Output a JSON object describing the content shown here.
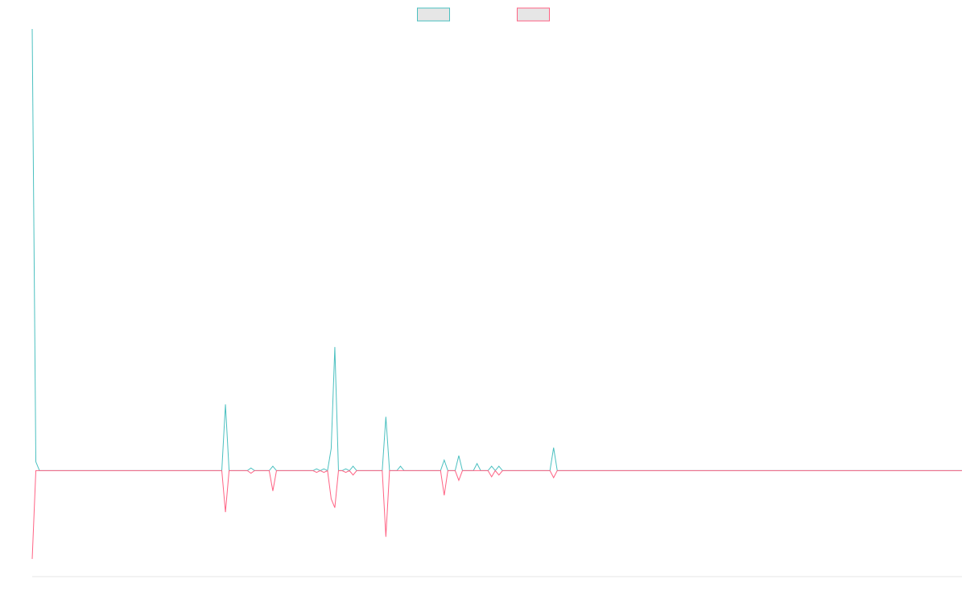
{
  "chart_data": {
    "type": "line",
    "x_count": 256,
    "ylim": [
      -120,
      500
    ],
    "legend_position": "top-center",
    "grid": false,
    "series": [
      {
        "color": "#4bc0c0",
        "nonzero": [
          [
            0,
            500
          ],
          [
            1,
            10
          ],
          [
            53,
            75
          ],
          [
            60,
            3
          ],
          [
            66,
            5
          ],
          [
            78,
            2
          ],
          [
            80,
            2
          ],
          [
            82,
            25
          ],
          [
            83,
            140
          ],
          [
            86,
            2
          ],
          [
            88,
            5
          ],
          [
            97,
            61
          ],
          [
            101,
            5
          ],
          [
            113,
            12
          ],
          [
            117,
            17
          ],
          [
            122,
            8
          ],
          [
            126,
            5
          ],
          [
            128,
            5
          ],
          [
            143,
            26
          ]
        ]
      },
      {
        "color": "#ff6384",
        "nonzero": [
          [
            0,
            -100
          ],
          [
            53,
            -47
          ],
          [
            60,
            -3
          ],
          [
            66,
            -23
          ],
          [
            78,
            -2
          ],
          [
            80,
            -2
          ],
          [
            82,
            -32
          ],
          [
            83,
            -42
          ],
          [
            86,
            -2
          ],
          [
            88,
            -5
          ],
          [
            97,
            -75
          ],
          [
            113,
            -28
          ],
          [
            117,
            -11
          ],
          [
            126,
            -7
          ],
          [
            128,
            -5
          ],
          [
            143,
            -8
          ]
        ]
      }
    ]
  }
}
